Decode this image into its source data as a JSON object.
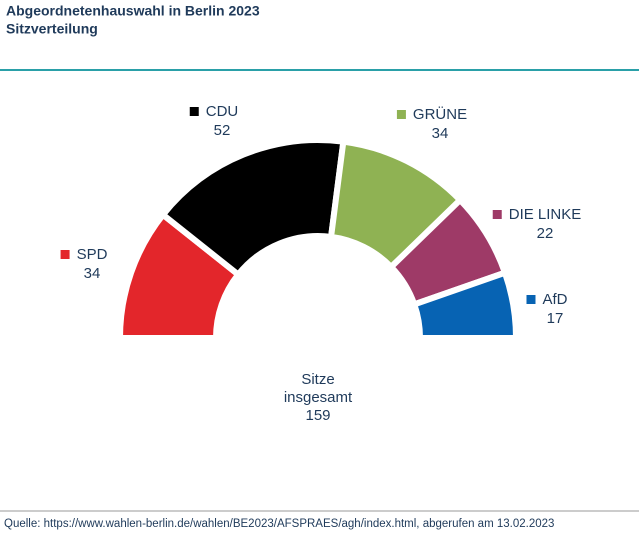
{
  "chart_data": {
    "type": "semicircle-donut",
    "title": "Abgeordnetenhauswahl in Berlin 2023",
    "subtitle": "Sitzverteilung",
    "categories": [
      "SPD",
      "CDU",
      "GRÜNE",
      "DIE LINKE",
      "AfD"
    ],
    "values": [
      34,
      52,
      34,
      22,
      17
    ],
    "colors": [
      "#e3262b",
      "#000000",
      "#8fb253",
      "#9e3a67",
      "#0763b3"
    ],
    "center_label": [
      "Sitze",
      "insgesamt"
    ],
    "total": 159,
    "source": "Quelle: https://www.wahlen-berlin.de/wahlen/BE2023/AFSPRAES/agh/index.html, abgerufen am 13.02.2023"
  }
}
